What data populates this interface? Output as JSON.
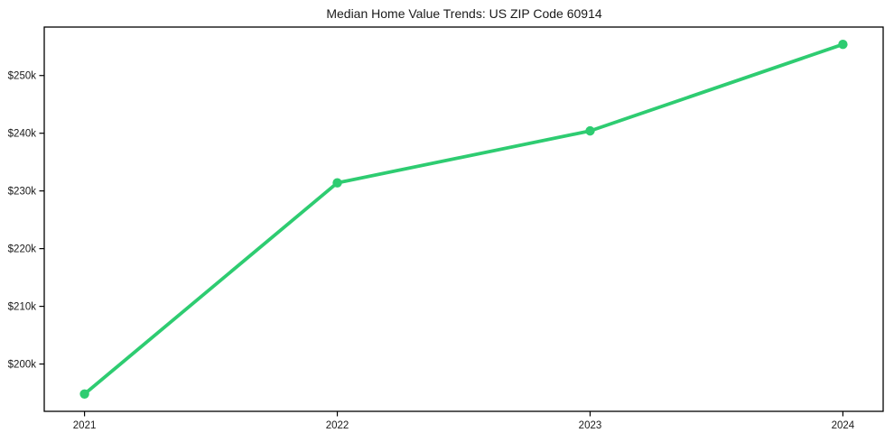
{
  "chart_data": {
    "type": "line",
    "title": "Median Home Value Trends: US ZIP Code 60914",
    "xlabel": "",
    "ylabel": "",
    "grid": false,
    "legend": "none",
    "x_tick_labels": [
      "2021",
      "2022",
      "2023",
      "2024"
    ],
    "x": [
      2021,
      2022,
      2023,
      2024
    ],
    "y_ticks": [
      {
        "value": 200000,
        "label": "$200k"
      },
      {
        "value": 210000,
        "label": "$210k"
      },
      {
        "value": 220000,
        "label": "$220k"
      },
      {
        "value": 230000,
        "label": "$230k"
      },
      {
        "value": 240000,
        "label": "$240k"
      },
      {
        "value": 250000,
        "label": "$250k"
      }
    ],
    "ylim": [
      191800,
      258400
    ],
    "series": [
      {
        "name": "Median home value",
        "values": [
          194800,
          231400,
          240400,
          255400
        ],
        "color": "#2ecc71",
        "marker": "circle"
      }
    ],
    "frame_color": "#000000",
    "text_color": "#1a1a1a",
    "background_color": "#ffffff"
  }
}
